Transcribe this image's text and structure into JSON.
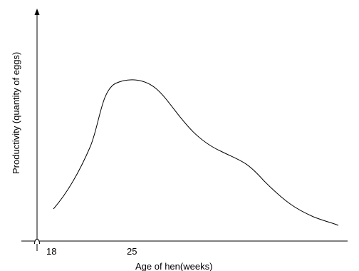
{
  "chart_data": {
    "type": "line",
    "title": "",
    "xlabel": "Age of hen(weeks)",
    "ylabel": "Productivity (quantity of eggs)",
    "x_ticks": [
      {
        "value": 18,
        "label": "18"
      },
      {
        "value": 25,
        "label": "25"
      }
    ],
    "grid": false,
    "legend": "none",
    "line_color": "#000000",
    "axis_color": "#000000"
  }
}
